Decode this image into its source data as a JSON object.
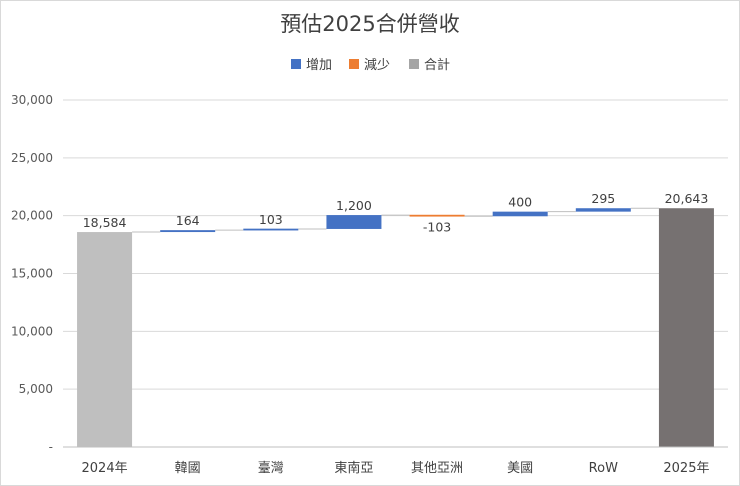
{
  "chart_data": {
    "type": "waterfall",
    "title": "預估2025合併營收",
    "legend": [
      {
        "name": "增加",
        "color": "#4472C4"
      },
      {
        "name": "減少",
        "color": "#ED7D31"
      },
      {
        "name": "合計",
        "color": "#A5A5A5"
      }
    ],
    "legend_position": "top",
    "categories": [
      "2024年",
      "韓國",
      "臺灣",
      "東南亞",
      "其他亞洲",
      "美國",
      "RoW",
      "2025年"
    ],
    "values": [
      18584,
      164,
      103,
      1200,
      -103,
      400,
      295,
      20643
    ],
    "kinds": [
      "total",
      "increase",
      "increase",
      "increase",
      "decrease",
      "increase",
      "increase",
      "total"
    ],
    "data_labels": [
      "18,584",
      "164",
      "103",
      "1,200",
      "-103",
      "400",
      "295",
      "20,643"
    ],
    "bar_colors": [
      "#BFBFBF",
      "#4472C4",
      "#4472C4",
      "#4472C4",
      "#ED7D31",
      "#4472C4",
      "#4472C4",
      "#767171"
    ],
    "ylim": [
      0,
      30000
    ],
    "y_ticks": [
      0,
      5000,
      10000,
      15000,
      20000,
      25000,
      30000
    ],
    "y_tick_labels": [
      "-",
      "5,000",
      "10,000",
      "15,000",
      "20,000",
      "25,000",
      "30,000"
    ],
    "grid": true,
    "xlabel": "",
    "ylabel": ""
  }
}
